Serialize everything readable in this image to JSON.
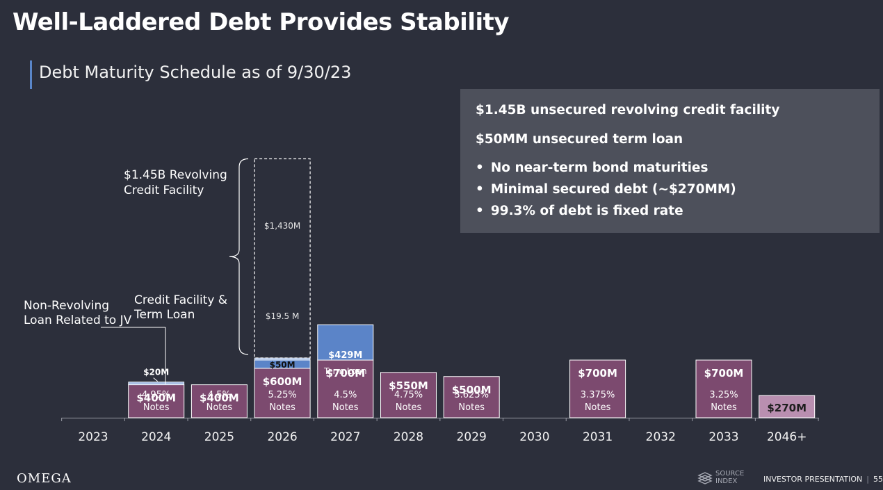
{
  "slide": {
    "title": "Well-Laddered Debt Provides Stability",
    "subtitle": "Debt Maturity Schedule as of 9/30/23"
  },
  "info_box": {
    "line1": "$1.45B unsecured revolving credit facility",
    "line2": "$50MM unsecured term loan",
    "bullets": [
      "No near-term bond maturities",
      "Minimal secured debt (~$270MM)",
      "99.3% of debt is fixed rate"
    ]
  },
  "chart_data": {
    "type": "bar",
    "title": "Debt Maturity Schedule as of 9/30/23",
    "units": "$M",
    "categories": [
      "2023",
      "2024",
      "2025",
      "2026",
      "2027",
      "2028",
      "2029",
      "2030",
      "2031",
      "2032",
      "2033",
      "2046+"
    ],
    "notes": [
      {
        "year": "2024",
        "value": 400,
        "label": "$400M",
        "rate": "4.95%",
        "kind": "Notes"
      },
      {
        "year": "2025",
        "value": 400,
        "label": "$400M",
        "rate": "4.5%",
        "kind": "Notes"
      },
      {
        "year": "2026",
        "value": 600,
        "label": "$600M",
        "rate": "5.25%",
        "kind": "Notes"
      },
      {
        "year": "2027",
        "value": 700,
        "label": "$700M",
        "rate": "4.5%",
        "kind": "Notes"
      },
      {
        "year": "2028",
        "value": 550,
        "label": "$550M",
        "rate": "4.75%",
        "kind": "Notes"
      },
      {
        "year": "2029",
        "value": 500,
        "label": "$500M",
        "rate": "3.625%",
        "kind": "Notes"
      },
      {
        "year": "2031",
        "value": 700,
        "label": "$700M",
        "rate": "3.375%",
        "kind": "Notes"
      },
      {
        "year": "2033",
        "value": 700,
        "label": "$700M",
        "rate": "3.25%",
        "kind": "Notes"
      }
    ],
    "secured": {
      "year": "2046+",
      "value": 270,
      "label": "$270M"
    },
    "term_loan_2027": {
      "year": "2027",
      "value": 429,
      "label": "$429M",
      "sublabel": "Term Loan"
    },
    "jv_loan": {
      "year": "2024",
      "value": 20,
      "label": "$20M"
    },
    "credit_facility_term_loan": {
      "year": "2026",
      "value": 50,
      "label": "$50M"
    },
    "credit_facility_small": {
      "year": "2026",
      "value": 19.5,
      "label": "$19.5 M"
    },
    "revolver_undrawn": {
      "year": "2026",
      "value": 1430,
      "label": "$1,430M"
    },
    "annotations": {
      "revolver": "$1.45B Revolving Credit Facility",
      "credit_facility": "Credit Facility & Term Loan",
      "jv": "Non-Revolving Loan Related to JV"
    },
    "colors": {
      "notes": "#7c4a6f",
      "term_loan": "#5b84c8",
      "secured": "#b98fb0",
      "small": "#a9c0e6"
    }
  },
  "footer": {
    "logo": "OMEGA",
    "source_line1": "SOURCE",
    "source_line2": "INDEX",
    "label": "INVESTOR PRESENTATION",
    "page": "55"
  }
}
